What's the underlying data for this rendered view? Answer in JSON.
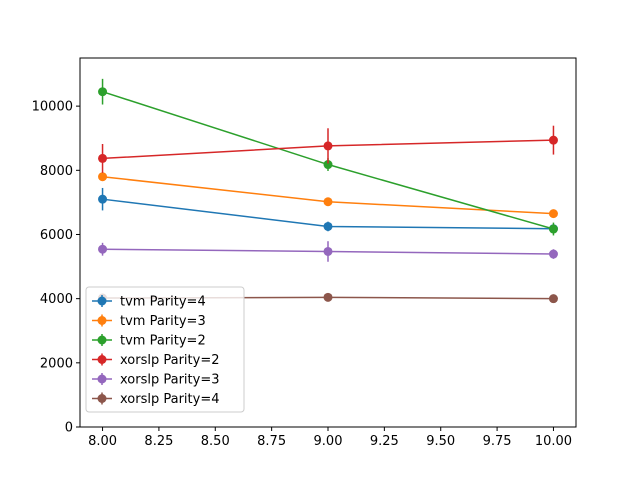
{
  "chart_data": {
    "type": "line",
    "title": "",
    "xlabel": "",
    "ylabel": "",
    "xlim": [
      7.9,
      10.1
    ],
    "ylim": [
      0,
      11500
    ],
    "x": [
      8.0,
      9.0,
      10.0
    ],
    "xticks": [
      "8.00",
      "8.25",
      "8.50",
      "8.75",
      "9.00",
      "9.25",
      "9.50",
      "9.75",
      "10.00"
    ],
    "xtick_values": [
      8.0,
      8.25,
      8.5,
      8.75,
      9.0,
      9.25,
      9.5,
      9.75,
      10.0
    ],
    "yticks": [
      "0",
      "2000",
      "4000",
      "6000",
      "8000",
      "10000"
    ],
    "ytick_values": [
      0,
      2000,
      4000,
      6000,
      8000,
      10000
    ],
    "grid": false,
    "legend_position": "lower-left",
    "series": [
      {
        "name": "tvm Parity=4",
        "color": "#1f77b4",
        "values": [
          7100,
          6250,
          6180
        ],
        "errors": [
          350,
          150,
          120
        ]
      },
      {
        "name": "tvm Parity=3",
        "color": "#ff7f0e",
        "values": [
          7800,
          7020,
          6650
        ],
        "errors": [
          80,
          70,
          60
        ]
      },
      {
        "name": "tvm Parity=2",
        "color": "#2ca02c",
        "values": [
          10450,
          8180,
          6170
        ],
        "errors": [
          400,
          200,
          200
        ]
      },
      {
        "name": "xorslp Parity=2",
        "color": "#d62728",
        "values": [
          8370,
          8760,
          8940
        ],
        "errors": [
          450,
          550,
          450
        ]
      },
      {
        "name": "xorslp Parity=3",
        "color": "#9467bd",
        "values": [
          5540,
          5470,
          5390
        ],
        "errors": [
          200,
          320,
          150
        ]
      },
      {
        "name": "xorslp Parity=4",
        "color": "#8c564b",
        "values": [
          4020,
          4040,
          4000
        ],
        "errors": [
          60,
          60,
          60
        ]
      }
    ]
  }
}
